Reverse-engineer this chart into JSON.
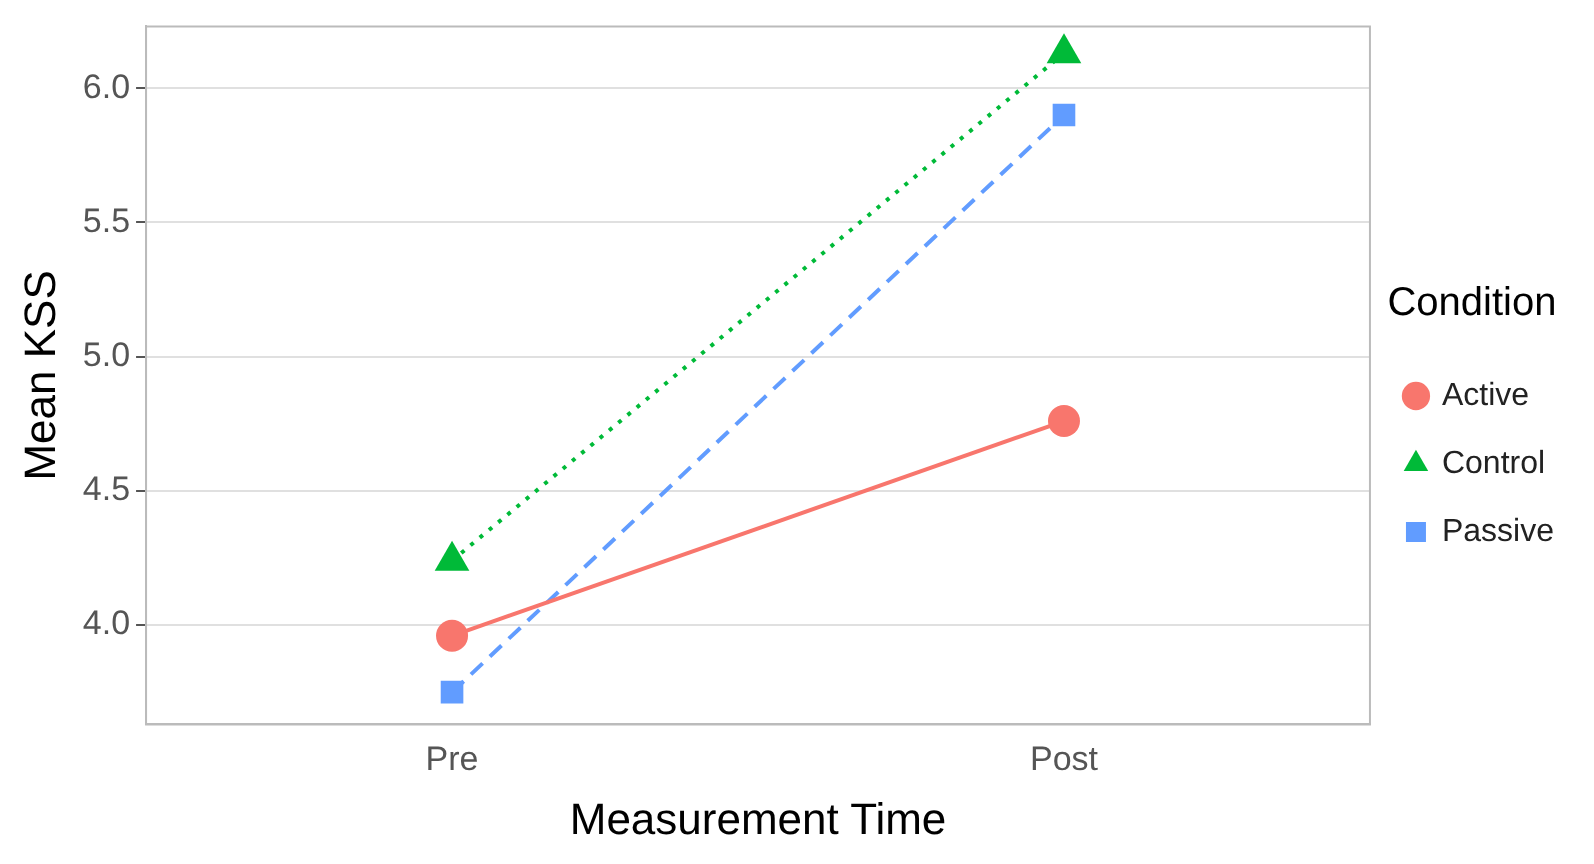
{
  "chart_data": {
    "type": "line",
    "xlabel": "Measurement Time",
    "ylabel": "Mean KSS",
    "legend_title": "Condition",
    "categories": [
      "Pre",
      "Post"
    ],
    "series": [
      {
        "name": "Active",
        "color": "#f8766d",
        "values": [
          3.96,
          4.76
        ],
        "marker": "circle",
        "line_style": "solid"
      },
      {
        "name": "Control",
        "color": "#00ba38",
        "values": [
          4.24,
          6.13
        ],
        "marker": "triangle",
        "line_style": "dotted"
      },
      {
        "name": "Passive",
        "color": "#619cff",
        "values": [
          3.75,
          5.9
        ],
        "marker": "square",
        "line_style": "dashed"
      }
    ],
    "ylim": [
      3.63,
      6.23
    ],
    "yticks": [
      {
        "value": 4,
        "label": "4.0"
      },
      {
        "value": 4.5,
        "label": "4.5"
      },
      {
        "value": 5,
        "label": "5.0"
      },
      {
        "value": 5.5,
        "label": "5.5"
      },
      {
        "value": 6,
        "label": "6.0"
      }
    ],
    "grid": "y",
    "legend": "right"
  }
}
